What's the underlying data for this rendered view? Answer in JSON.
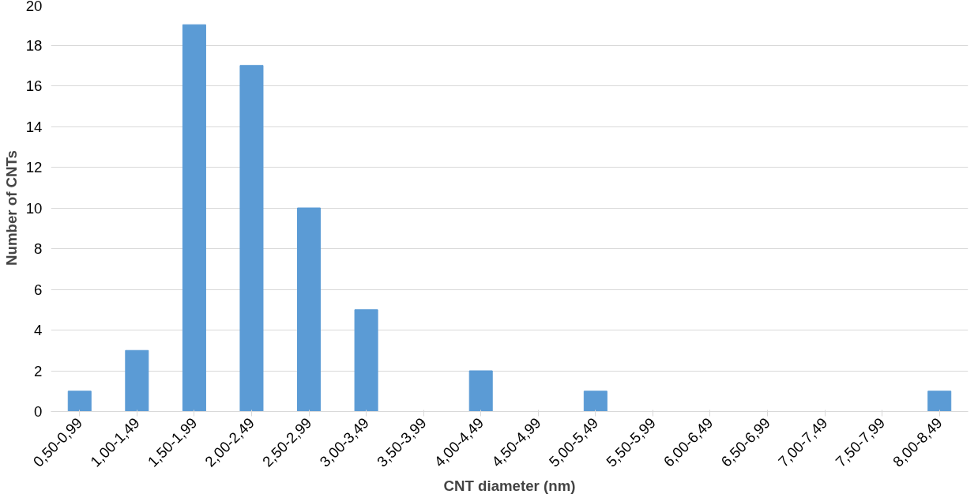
{
  "chart_data": {
    "type": "bar",
    "xlabel": "CNT diameter (nm)",
    "ylabel": "Number of CNTs",
    "categories": [
      "0,50-0,99",
      "1,00-1,49",
      "1,50-1,99",
      "2,00-2,49",
      "2,50-2,99",
      "3,00-3,49",
      "3,50-3,99",
      "4,00-4,49",
      "4,50-4,99",
      "5,00-5,49",
      "5,50-5,99",
      "6,00-6,49",
      "6,50-6,99",
      "7,00-7,49",
      "7,50-7,99",
      "8,00-8,49"
    ],
    "values": [
      1,
      3,
      19,
      17,
      10,
      5,
      0,
      2,
      0,
      1,
      0,
      0,
      0,
      0,
      0,
      1
    ],
    "color": "#5b9bd5",
    "ylim": [
      0,
      20
    ],
    "yticks": [
      0,
      2,
      4,
      6,
      8,
      10,
      12,
      14,
      16,
      18,
      20
    ],
    "grid": "y"
  }
}
